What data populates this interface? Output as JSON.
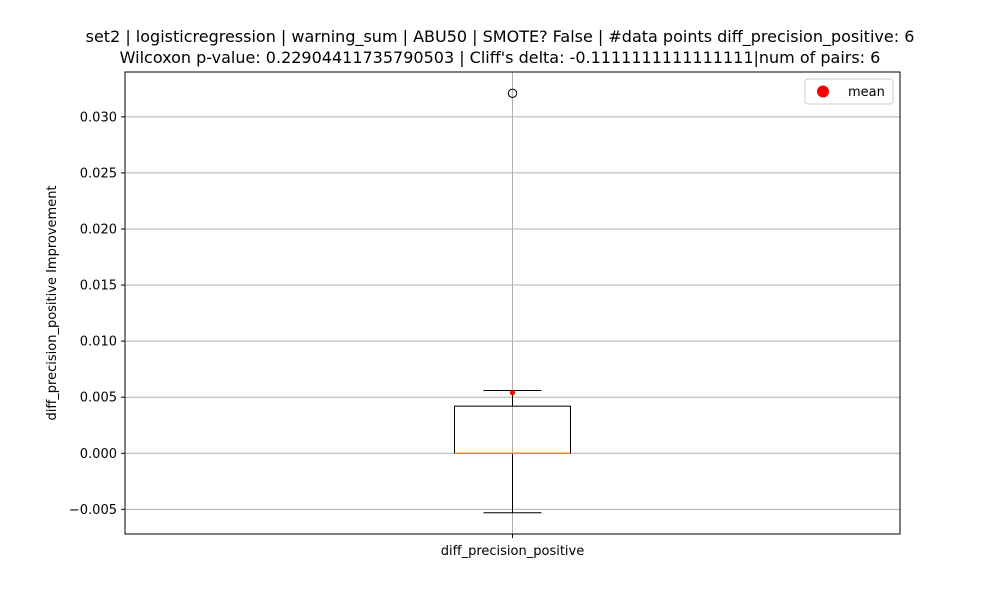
{
  "chart_data": {
    "type": "box",
    "title": "set2 | logisticregression | warning_sum | ABU50 | SMOTE? False | #data points diff_precision_positive: 6",
    "subtitle": "Wilcoxon p-value: 0.22904411735790503 | Cliff's delta: -0.1111111111111111|num of pairs: 6",
    "xlabel": "",
    "ylabel": "diff_precision_positive Improvement",
    "categories": [
      "diff_precision_positive"
    ],
    "ylim": [
      -0.0072,
      0.034
    ],
    "yticks": [
      -0.005,
      0.0,
      0.005,
      0.01,
      0.015,
      0.02,
      0.025,
      0.03
    ],
    "ytick_labels": [
      "−0.005",
      "0.000",
      "0.005",
      "0.010",
      "0.015",
      "0.020",
      "0.025",
      "0.030"
    ],
    "grid": true,
    "legend": {
      "position": "top-right",
      "entries": [
        "mean"
      ]
    },
    "boxes": [
      {
        "name": "diff_precision_positive",
        "whisker_low": -0.0053,
        "q1": 0.0,
        "median": 0.0,
        "q3": 0.0042,
        "whisker_high": 0.0056,
        "mean": 0.0054,
        "outliers": [
          0.0321
        ]
      }
    ],
    "colors": {
      "median": "#e8872a",
      "mean": "#ff0000",
      "grid": "#b0b0b0",
      "box": "#000000"
    }
  }
}
